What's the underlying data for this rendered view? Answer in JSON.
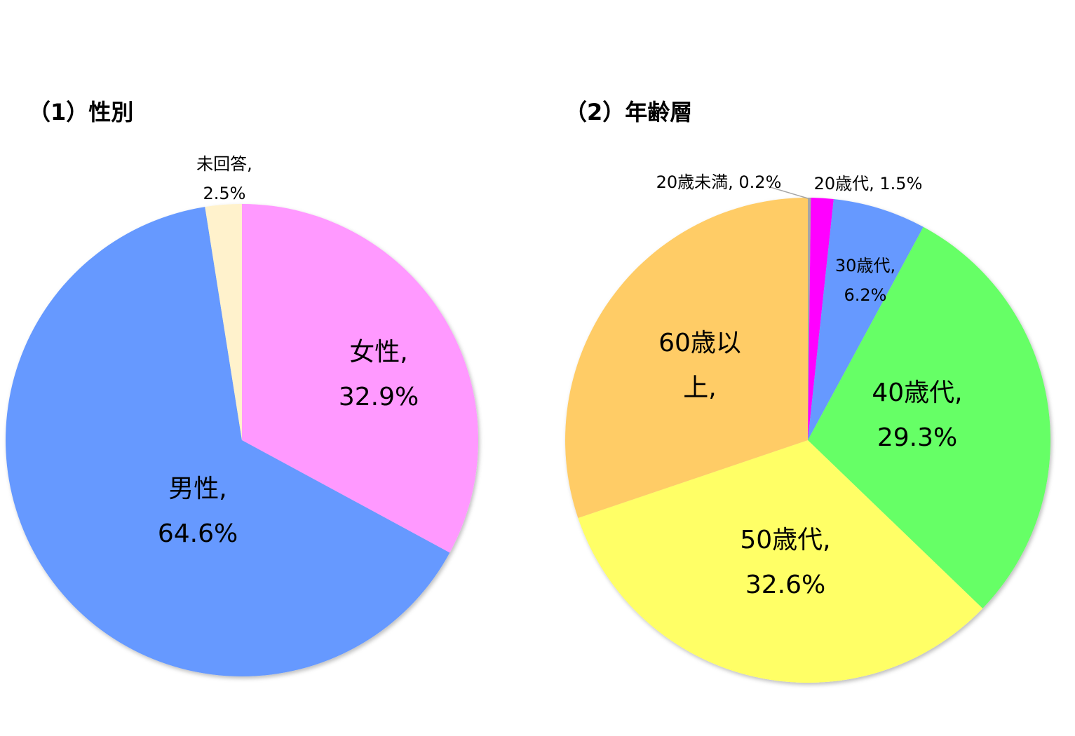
{
  "chart_data": [
    {
      "type": "pie",
      "title": "（1）性別",
      "categories": [
        "女性",
        "男性",
        "未回答"
      ],
      "values": [
        32.9,
        64.6,
        2.5
      ],
      "value_labels": [
        "女性, 32.9%",
        "男性, 64.6%",
        "未回答, 2.5%"
      ],
      "colors": [
        "#ff99ff",
        "#6699ff",
        "#fff2cc"
      ]
    },
    {
      "type": "pie",
      "title": "（2）年齢層",
      "categories": [
        "20歳未満",
        "20歳代",
        "30歳代",
        "40歳代",
        "50歳代",
        "60歳以上"
      ],
      "values": [
        0.2,
        1.5,
        6.2,
        29.3,
        32.6,
        30.2
      ],
      "value_labels": [
        "20歳未満, 0.2%",
        "20歳代, 1.5%",
        "30歳代, 6.2%",
        "40歳代, 29.3%",
        "50歳代, 32.6%",
        "60歳以上,"
      ],
      "colors": [
        "#a6a6a6",
        "#ff00ff",
        "#6699ff",
        "#66ff66",
        "#ffff66",
        "#ffcc66"
      ]
    }
  ]
}
